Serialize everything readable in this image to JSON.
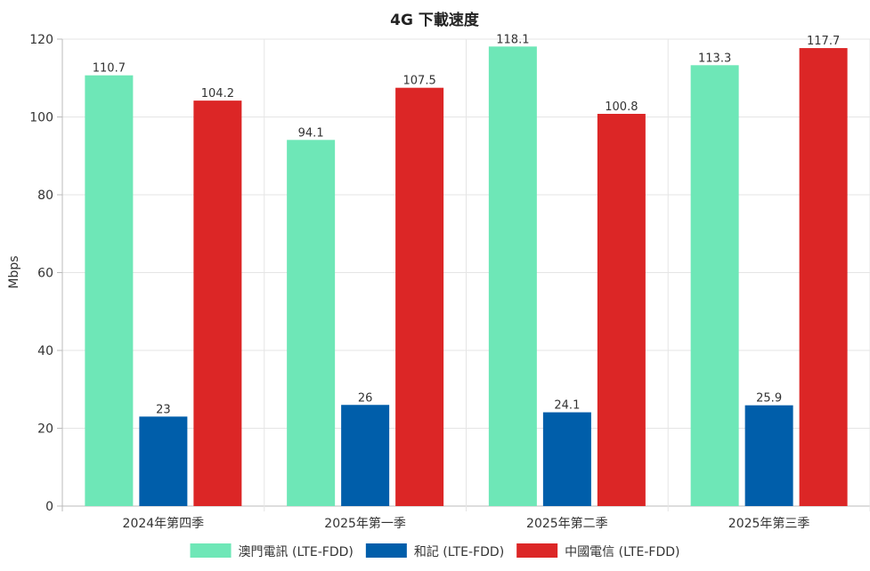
{
  "chart_data": {
    "type": "bar",
    "title": "4G 下載速度",
    "xlabel": "",
    "ylabel": "Mbps",
    "ylim": [
      0,
      120
    ],
    "yticks": [
      0,
      20,
      40,
      60,
      80,
      100,
      120
    ],
    "grid": true,
    "legend_placement": "bottom",
    "categories": [
      "2024年第四季",
      "2025年第一季",
      "2025年第二季",
      "2025年第三季"
    ],
    "series": [
      {
        "name": "澳門電訊 (LTE-FDD)",
        "color": "#6ee7b7",
        "values": [
          110.7,
          94.1,
          118.1,
          113.3
        ]
      },
      {
        "name": "和記 (LTE-FDD)",
        "color": "#005eaa",
        "values": [
          23,
          26,
          24.1,
          25.9
        ]
      },
      {
        "name": "中國電信 (LTE-FDD)",
        "color": "#dc2626",
        "values": [
          104.2,
          107.5,
          100.8,
          117.7
        ]
      }
    ]
  }
}
